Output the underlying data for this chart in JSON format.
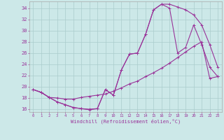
{
  "xlabel": "Windchill (Refroidissement éolien,°C)",
  "bg_color": "#cce8e8",
  "line_color": "#993399",
  "grid_color": "#aacccc",
  "xlim": [
    -0.5,
    23.5
  ],
  "ylim": [
    15.5,
    35.2
  ],
  "xticks": [
    0,
    1,
    2,
    3,
    4,
    5,
    6,
    7,
    8,
    9,
    10,
    11,
    12,
    13,
    14,
    15,
    16,
    17,
    18,
    19,
    20,
    21,
    22,
    23
  ],
  "yticks": [
    16,
    18,
    20,
    22,
    24,
    26,
    28,
    30,
    32,
    34
  ],
  "line1_x": [
    0,
    1,
    2,
    3,
    4,
    5,
    6,
    7,
    8,
    9,
    10,
    11,
    12,
    13,
    14,
    15,
    16,
    17,
    18,
    19,
    20,
    21,
    22,
    23
  ],
  "line1_y": [
    19.5,
    19.0,
    18.1,
    17.3,
    16.8,
    16.3,
    16.1,
    16.0,
    16.1,
    19.5,
    18.5,
    23.0,
    25.8,
    26.0,
    29.3,
    33.7,
    34.7,
    34.7,
    34.2,
    33.7,
    32.8,
    31.0,
    27.5,
    23.5
  ],
  "line2_x": [
    0,
    1,
    2,
    3,
    4,
    5,
    6,
    7,
    8,
    9,
    10,
    11,
    12,
    13,
    14,
    15,
    16,
    17,
    18,
    19,
    20,
    21,
    22,
    23
  ],
  "line2_y": [
    19.5,
    19.0,
    18.1,
    18.0,
    17.8,
    17.8,
    18.1,
    18.3,
    18.5,
    18.7,
    19.2,
    19.8,
    20.5,
    21.0,
    21.8,
    22.5,
    23.3,
    24.2,
    25.2,
    26.2,
    27.2,
    28.0,
    21.5,
    21.8
  ],
  "line3_x": [
    0,
    1,
    2,
    3,
    4,
    5,
    6,
    7,
    8,
    9,
    10,
    11,
    12,
    13,
    14,
    15,
    16,
    17,
    18,
    19,
    20,
    21,
    22,
    23
  ],
  "line3_y": [
    19.5,
    19.0,
    18.1,
    17.3,
    16.8,
    16.3,
    16.1,
    15.9,
    16.1,
    19.5,
    18.5,
    23.0,
    25.8,
    26.0,
    29.3,
    33.7,
    34.7,
    34.0,
    26.0,
    27.0,
    31.0,
    27.5,
    23.5,
    21.8
  ]
}
